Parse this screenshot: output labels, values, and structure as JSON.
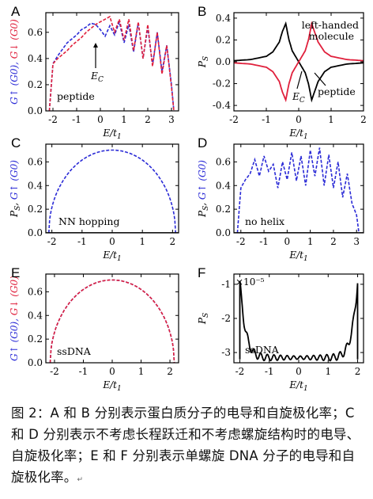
{
  "caption": {
    "text": "图 2：A 和 B 分别表示蛋白质分子的电导和自旋极化率；C 和 D 分别表示不考虑长程跃迁和不考虑螺旋结构时的电导、自旋极化率；E 和 F 分别表示单螺旋 DNA 分子的电导和自旋极化率。",
    "end_mark": "↵"
  },
  "colors": {
    "up": "#2a2ad6",
    "down": "#e0203c",
    "black": "#000000"
  },
  "chart_data": [
    {
      "id": "A",
      "type": "line",
      "letter": "A",
      "inset": "peptide",
      "annotation": "E_C",
      "annotation_x": -0.2,
      "xlabel": "E/t1",
      "ylabel": "G↑ (G0), G↓ (G0)",
      "xlim": [
        -2.3,
        3.3
      ],
      "ylim": [
        0,
        0.75
      ],
      "xticks": [
        "-2",
        "-1",
        "0",
        "1",
        "2",
        "3"
      ],
      "xtick_vals": [
        -2,
        -1,
        0,
        1,
        2,
        3
      ],
      "yticks": [
        "0.0",
        "0.2",
        "0.4",
        "0.6"
      ],
      "ytick_vals": [
        0,
        0.2,
        0.4,
        0.6
      ],
      "series": [
        {
          "name": "G↑",
          "color": "up",
          "style": "dash",
          "x": [
            -2.15,
            -2.0,
            -1.8,
            -1.6,
            -1.4,
            -1.2,
            -1.0,
            -0.8,
            -0.6,
            -0.4,
            -0.2,
            0.0,
            0.2,
            0.4,
            0.6,
            0.8,
            1.0,
            1.2,
            1.4,
            1.6,
            1.8,
            2.0,
            2.2,
            2.4,
            2.6,
            2.8,
            3.0,
            3.1
          ],
          "y": [
            0.0,
            0.36,
            0.42,
            0.47,
            0.52,
            0.55,
            0.58,
            0.62,
            0.64,
            0.67,
            0.66,
            0.62,
            0.57,
            0.65,
            0.58,
            0.68,
            0.52,
            0.66,
            0.45,
            0.67,
            0.4,
            0.64,
            0.35,
            0.6,
            0.3,
            0.5,
            0.2,
            0.0
          ]
        },
        {
          "name": "G↓",
          "color": "down",
          "style": "dash",
          "x": [
            -2.15,
            -2.0,
            -1.8,
            -1.6,
            -1.4,
            -1.2,
            -1.0,
            -0.8,
            -0.6,
            -0.4,
            -0.2,
            0.0,
            0.2,
            0.4,
            0.6,
            0.8,
            1.0,
            1.2,
            1.4,
            1.6,
            1.8,
            2.0,
            2.2,
            2.4,
            2.6,
            2.8,
            3.0,
            3.1
          ],
          "y": [
            0.0,
            0.36,
            0.4,
            0.43,
            0.46,
            0.5,
            0.53,
            0.56,
            0.6,
            0.63,
            0.66,
            0.68,
            0.7,
            0.72,
            0.6,
            0.7,
            0.54,
            0.7,
            0.46,
            0.68,
            0.4,
            0.66,
            0.34,
            0.6,
            0.28,
            0.5,
            0.18,
            0.0
          ]
        }
      ]
    },
    {
      "id": "B",
      "type": "line",
      "letter": "B",
      "inset": "peptide",
      "label_molecule_1": "left-handed",
      "label_molecule_2": "molecule",
      "annotation": "E_C",
      "xlabel": "E/t1",
      "ylabel": "P_S",
      "xlim": [
        -2,
        2
      ],
      "ylim": [
        -0.45,
        0.45
      ],
      "xticks": [
        "-2",
        "-1",
        "0",
        "1",
        "2"
      ],
      "xtick_vals": [
        -2,
        -1,
        0,
        1,
        2
      ],
      "yticks": [
        "-0.4",
        "-0.2",
        "0.0",
        "0.2",
        "0.4"
      ],
      "ytick_vals": [
        -0.4,
        -0.2,
        0,
        0.2,
        0.4
      ],
      "series": [
        {
          "name": "peptide",
          "color": "black",
          "style": "solid",
          "x": [
            -2.0,
            -1.5,
            -1.0,
            -0.8,
            -0.6,
            -0.5,
            -0.4,
            -0.3,
            -0.2,
            -0.1,
            0.0,
            0.1,
            0.2,
            0.3,
            0.4,
            0.6,
            0.8,
            1.0,
            1.5,
            2.0
          ],
          "y": [
            0.01,
            0.02,
            0.05,
            0.09,
            0.18,
            0.28,
            0.35,
            0.2,
            0.1,
            0.05,
            0.0,
            -0.05,
            -0.1,
            -0.2,
            -0.35,
            -0.18,
            -0.09,
            -0.05,
            -0.02,
            -0.01
          ]
        },
        {
          "name": "left-handed molecule",
          "color": "down",
          "style": "solid",
          "x": [
            -2.0,
            -1.5,
            -1.0,
            -0.8,
            -0.6,
            -0.5,
            -0.4,
            -0.3,
            -0.2,
            -0.1,
            0.0,
            0.1,
            0.2,
            0.3,
            0.4,
            0.6,
            0.8,
            1.0,
            1.5,
            2.0
          ],
          "y": [
            -0.01,
            -0.02,
            -0.05,
            -0.09,
            -0.18,
            -0.28,
            -0.35,
            -0.2,
            -0.1,
            -0.05,
            0.0,
            0.05,
            0.1,
            0.2,
            0.35,
            0.18,
            0.09,
            0.05,
            0.02,
            0.01
          ]
        }
      ]
    },
    {
      "id": "C",
      "type": "line",
      "letter": "C",
      "inset": "NN hopping",
      "xlabel": "E/t1",
      "ylabel": "P_S, G↑ (G0)",
      "xlim": [
        -2.2,
        2.2
      ],
      "ylim": [
        0,
        0.75
      ],
      "xticks": [
        "-2",
        "-1",
        "0",
        "1",
        "2"
      ],
      "xtick_vals": [
        -2,
        -1,
        0,
        1,
        2
      ],
      "yticks": [
        "0.0",
        "0.2",
        "0.4",
        "0.6"
      ],
      "ytick_vals": [
        0,
        0.2,
        0.4,
        0.6
      ],
      "series": [
        {
          "name": "G↑",
          "color": "up",
          "style": "dash",
          "shape": "semicircle",
          "radius": 2.1,
          "peak": 0.7
        },
        {
          "name": "P_S",
          "color": "black",
          "style": "solid",
          "x": [
            -2.2,
            2.2
          ],
          "y": [
            0,
            0
          ]
        }
      ]
    },
    {
      "id": "D",
      "type": "line",
      "letter": "D",
      "inset": "no helix",
      "xlabel": "E/t1",
      "ylabel": "P_S, G↑ (G0)",
      "xlim": [
        -2.3,
        3.3
      ],
      "ylim": [
        0,
        0.75
      ],
      "xticks": [
        "-2",
        "-1",
        "0",
        "1",
        "2",
        "3"
      ],
      "xtick_vals": [
        -2,
        -1,
        0,
        1,
        2,
        3
      ],
      "yticks": [
        "0.0",
        "0.2",
        "0.4",
        "0.6"
      ],
      "ytick_vals": [
        0,
        0.2,
        0.4,
        0.6
      ],
      "series": [
        {
          "name": "G↑",
          "color": "up",
          "style": "dash",
          "x": [
            -2.15,
            -2.0,
            -1.8,
            -1.6,
            -1.4,
            -1.2,
            -1.0,
            -0.8,
            -0.6,
            -0.4,
            -0.2,
            0.0,
            0.2,
            0.4,
            0.6,
            0.8,
            1.0,
            1.2,
            1.4,
            1.6,
            1.8,
            2.0,
            2.2,
            2.4,
            2.6,
            2.8,
            3.0,
            3.1
          ],
          "y": [
            0.0,
            0.38,
            0.45,
            0.5,
            0.62,
            0.48,
            0.65,
            0.52,
            0.58,
            0.38,
            0.6,
            0.45,
            0.68,
            0.44,
            0.65,
            0.4,
            0.7,
            0.48,
            0.72,
            0.4,
            0.66,
            0.38,
            0.6,
            0.3,
            0.5,
            0.25,
            0.15,
            0.0
          ]
        },
        {
          "name": "P_S",
          "color": "black",
          "style": "solid",
          "x": [
            -2.3,
            3.3
          ],
          "y": [
            0,
            0
          ]
        }
      ]
    },
    {
      "id": "E",
      "type": "line",
      "letter": "E",
      "inset": "ssDNA",
      "xlabel": "E/t1",
      "ylabel": "G↑ (G0), G↓ (G0)",
      "xlim": [
        -2.3,
        2.3
      ],
      "ylim": [
        0,
        0.75
      ],
      "xticks": [
        "-2",
        "-1",
        "0",
        "1",
        "2"
      ],
      "xtick_vals": [
        -2,
        -1,
        0,
        1,
        2
      ],
      "yticks": [
        "0.0",
        "0.2",
        "0.4",
        "0.6"
      ],
      "ytick_vals": [
        0,
        0.2,
        0.4,
        0.6
      ],
      "series": [
        {
          "name": "G↑",
          "color": "up",
          "style": "dash",
          "shape": "semicircle",
          "radius": 2.15,
          "peak": 0.7
        },
        {
          "name": "G↓",
          "color": "down",
          "style": "dash",
          "shape": "semicircle",
          "radius": 2.15,
          "peak": 0.7
        }
      ]
    },
    {
      "id": "F",
      "type": "line",
      "letter": "F",
      "inset": "ssDNA",
      "scale_label": "×10⁻⁵",
      "xlabel": "E/t1",
      "ylabel": "P_S",
      "xlim": [
        -2.2,
        2.2
      ],
      "ylim": [
        -3.3,
        -0.7
      ],
      "xticks": [
        "-2",
        "-1",
        "0",
        "1",
        "2"
      ],
      "xtick_vals": [
        -2,
        -1,
        0,
        1,
        2
      ],
      "yticks": [
        "-1",
        "-2",
        "-3"
      ],
      "ytick_vals": [
        -1,
        -2,
        -3
      ],
      "series": [
        {
          "name": "P_S",
          "color": "black",
          "style": "solid",
          "shape": "bowl",
          "min": -3.15,
          "edge": -0.9
        }
      ]
    }
  ]
}
